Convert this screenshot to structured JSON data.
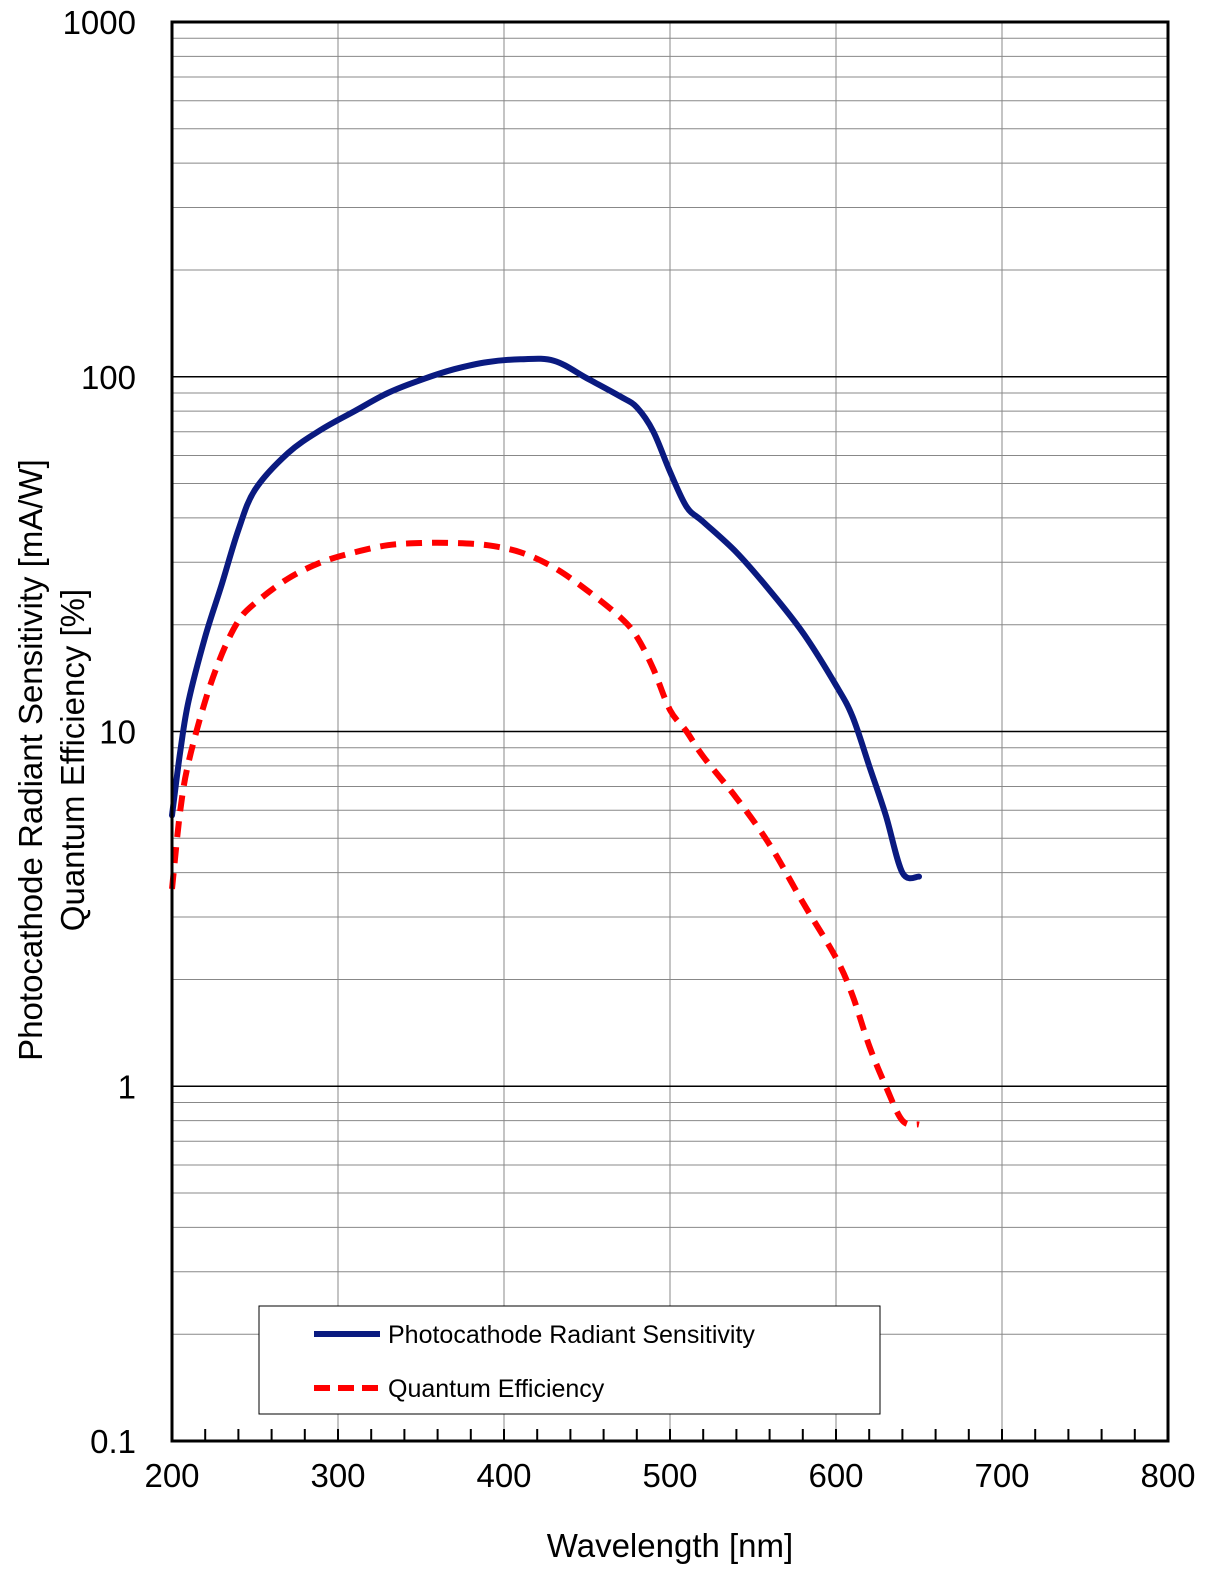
{
  "chart_data": {
    "type": "line",
    "xlabel": "Wavelength [nm]",
    "ylabel_lines": [
      "Photocathode Radiant Sensitivity [mA/W]",
      "Quantum Efficiency [%]"
    ],
    "xlim": [
      200,
      800
    ],
    "ylim": [
      0.1,
      1000
    ],
    "yscale": "log",
    "grid": true,
    "legend_placement": "bottom-left",
    "x_ticks": [
      "200",
      "300",
      "400",
      "500",
      "600",
      "700",
      "800"
    ],
    "y_ticks": [
      "0.1",
      "1",
      "10",
      "100",
      "1000"
    ],
    "series": [
      {
        "name": "Photocathode Radiant Sensitivity",
        "color": "#0a1a80",
        "style": "solid",
        "x": [
          200,
          205,
          210,
          220,
          230,
          240,
          250,
          270,
          290,
          310,
          330,
          350,
          370,
          390,
          410,
          430,
          450,
          470,
          480,
          490,
          500,
          510,
          520,
          540,
          560,
          580,
          600,
          610,
          620,
          630,
          640,
          650
        ],
        "y": [
          5.8,
          8.8,
          12.2,
          18.5,
          26,
          37,
          48,
          61,
          71,
          80,
          90,
          98,
          105,
          110,
          112,
          111,
          99,
          88,
          82,
          70,
          54,
          43,
          39,
          32,
          25,
          19,
          13.5,
          11,
          8,
          5.8,
          4.0,
          3.9
        ]
      },
      {
        "name": "Quantum Efficiency",
        "color": "#ff0000",
        "style": "dashed",
        "x": [
          200,
          205,
          210,
          220,
          230,
          240,
          250,
          270,
          290,
          310,
          330,
          350,
          370,
          390,
          410,
          430,
          450,
          470,
          480,
          490,
          500,
          510,
          520,
          540,
          560,
          580,
          600,
          610,
          620,
          630,
          640,
          650
        ],
        "y": [
          3.6,
          6.0,
          8.2,
          12.2,
          16.5,
          20.5,
          23,
          27,
          30,
          32,
          33.5,
          34,
          34,
          33.5,
          32,
          29,
          25,
          21,
          18.5,
          15,
          11.5,
          10,
          8.5,
          6.5,
          4.8,
          3.3,
          2.3,
          1.8,
          1.3,
          1.0,
          0.8,
          0.78
        ]
      }
    ]
  }
}
